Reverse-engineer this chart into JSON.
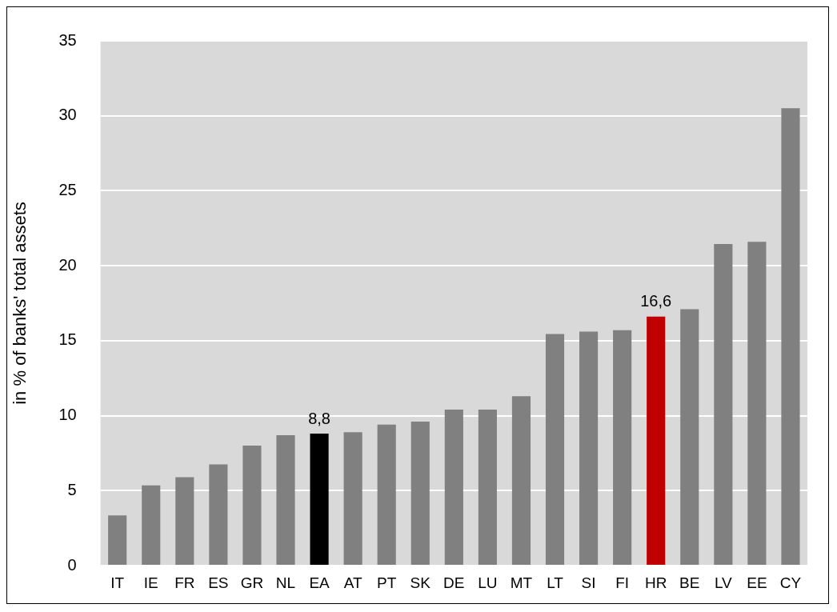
{
  "chart_data": {
    "type": "bar",
    "ylabel": "in % of banks' total assets",
    "categories": [
      "IT",
      "IE",
      "FR",
      "ES",
      "GR",
      "NL",
      "EA",
      "AT",
      "PT",
      "SK",
      "DE",
      "LU",
      "MT",
      "LT",
      "SI",
      "FI",
      "HR",
      "BE",
      "LV",
      "EE",
      "CY"
    ],
    "values": [
      3.35,
      5.35,
      5.9,
      6.75,
      8.0,
      8.7,
      8.8,
      8.9,
      9.4,
      9.6,
      10.4,
      10.4,
      11.3,
      15.45,
      15.6,
      15.7,
      16.6,
      17.1,
      21.45,
      21.6,
      30.5
    ],
    "colors": [
      "#808080",
      "#808080",
      "#808080",
      "#808080",
      "#808080",
      "#808080",
      "#000000",
      "#808080",
      "#808080",
      "#808080",
      "#808080",
      "#808080",
      "#808080",
      "#808080",
      "#808080",
      "#808080",
      "#c00000",
      "#808080",
      "#808080",
      "#808080",
      "#808080"
    ],
    "value_labels": [
      null,
      null,
      null,
      null,
      null,
      null,
      "8,8",
      null,
      null,
      null,
      null,
      null,
      null,
      null,
      null,
      null,
      "16,6",
      null,
      null,
      null,
      null
    ],
    "ylim": [
      0,
      35
    ],
    "yticks": [
      0,
      5,
      10,
      15,
      20,
      25,
      30,
      35
    ],
    "grid": "y",
    "legend": false
  }
}
